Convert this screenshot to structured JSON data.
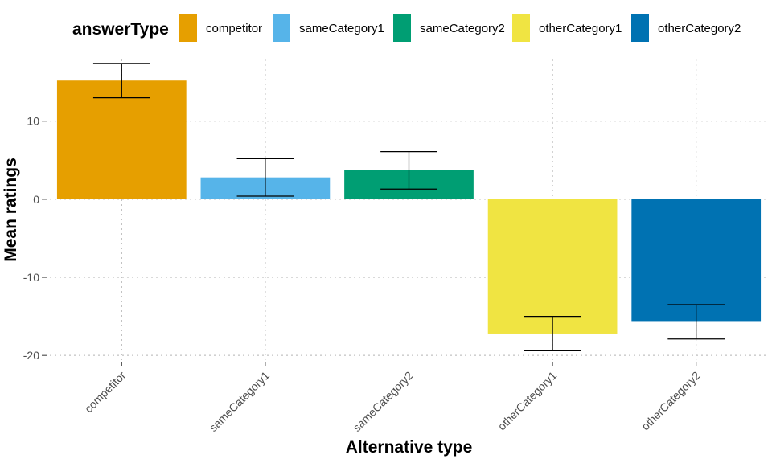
{
  "chart_data": {
    "type": "bar",
    "categories": [
      "competitor",
      "sameCategory1",
      "sameCategory2",
      "otherCategory1",
      "otherCategory2"
    ],
    "values": [
      15.2,
      2.8,
      3.7,
      -17.2,
      -15.6
    ],
    "error_low": [
      13.0,
      0.4,
      1.3,
      -19.4,
      -17.9
    ],
    "error_high": [
      17.4,
      5.2,
      6.1,
      -15.0,
      -13.5
    ],
    "colors": [
      "#E69F00",
      "#56B4E9",
      "#009E73",
      "#F0E442",
      "#0072B2"
    ],
    "legend": {
      "title": "answerType",
      "position": "top",
      "entries": [
        "competitor",
        "sameCategory1",
        "sameCategory2",
        "otherCategory1",
        "otherCategory2"
      ]
    },
    "xlabel": "Alternative type",
    "ylabel": "Mean ratings",
    "ylim": [
      -20.6,
      17.9
    ],
    "yticks": [
      -20,
      -10,
      0,
      10
    ],
    "ytick_labels": [
      "-20",
      "-10",
      "0",
      "10"
    ],
    "grid": true
  }
}
